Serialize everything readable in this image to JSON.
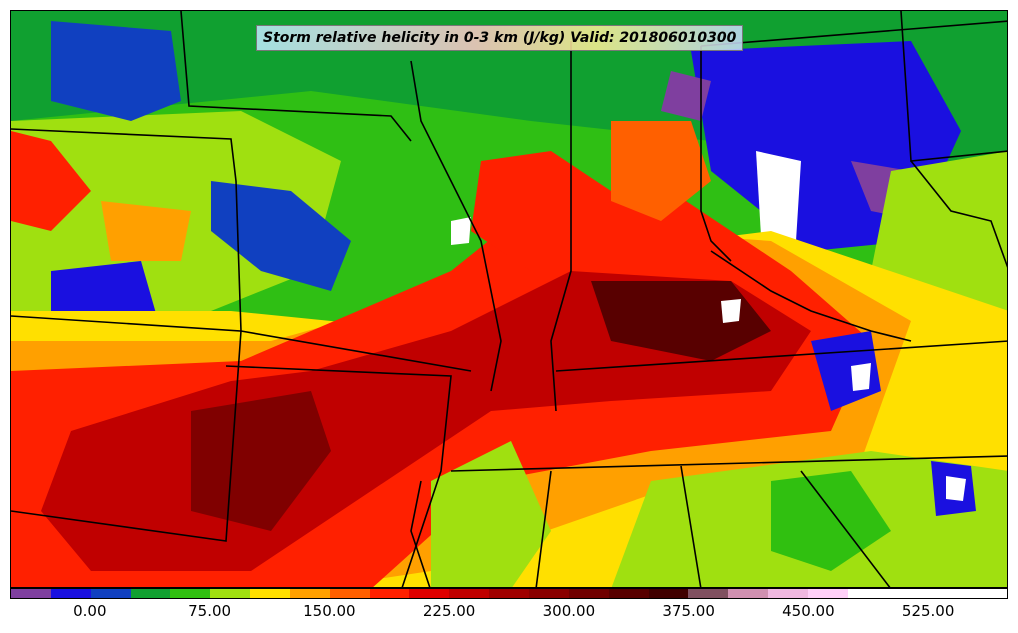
{
  "title": "Storm relative helicity in 0-3 km (J/kg) Valid: 201806010300",
  "colorbar": {
    "min": -50,
    "max": 575,
    "step": 25,
    "tick_labels": [
      "0.00",
      "75.00",
      "150.00",
      "225.00",
      "300.00",
      "375.00",
      "450.00",
      "525.00"
    ],
    "tick_values": [
      0,
      75,
      150,
      225,
      300,
      375,
      450,
      525
    ],
    "colors": [
      "#7f3f9f",
      "#1a10e0",
      "#1040c0",
      "#10a030",
      "#30c010",
      "#a0e010",
      "#ffe000",
      "#ffa000",
      "#ff6000",
      "#ff2000",
      "#e00000",
      "#c00000",
      "#a00000",
      "#8a0000",
      "#700000",
      "#580000",
      "#400000",
      "#805060",
      "#d090b0",
      "#f0b8e0",
      "#ffd0f8",
      "#ffffff",
      "#ffffff",
      "#ffffff",
      "#ffffff"
    ]
  },
  "map": {
    "background_color": "#2fbf14",
    "boundary_color": "#000000"
  }
}
